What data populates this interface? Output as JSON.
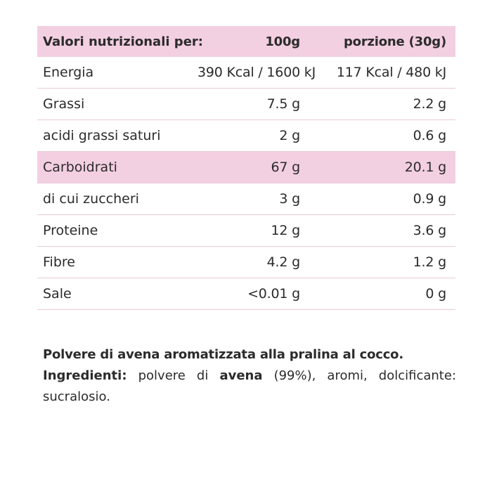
{
  "table": {
    "header": {
      "name": "Valori nutrizionali per:",
      "per_100g": "100g",
      "per_portion": "porzione (30g)"
    },
    "rows": [
      {
        "name": "Energia",
        "per_100g": "390 Kcal / 1600 kJ",
        "per_portion": "117 Kcal / 480 kJ",
        "highlight": false
      },
      {
        "name": "Grassi",
        "per_100g": "7.5 g",
        "per_portion": "2.2 g",
        "highlight": false
      },
      {
        "name": "acidi grassi saturi",
        "per_100g": "2 g",
        "per_portion": "0.6 g",
        "highlight": false
      },
      {
        "name": "Carboidrati",
        "per_100g": "67 g",
        "per_portion": "20.1 g",
        "highlight": true
      },
      {
        "name": "di cui zuccheri",
        "per_100g": "3 g",
        "per_portion": "0.9 g",
        "highlight": false
      },
      {
        "name": "Proteine",
        "per_100g": "12 g",
        "per_portion": "3.6 g",
        "highlight": false
      },
      {
        "name": "Fibre",
        "per_100g": "4.2 g",
        "per_portion": "1.2 g",
        "highlight": false
      },
      {
        "name": "Sale",
        "per_100g": "<0.01 g",
        "per_portion": "0 g",
        "highlight": false
      }
    ]
  },
  "description": {
    "title": "Polvere di avena aromatizzata alla pralina al cocco.",
    "ingredients_label": "Ingredienti:",
    "ingredients_part1": " polvere di ",
    "ingredients_bold": "avena",
    "ingredients_part2": " (99%), aromi, dolcificante: sucralosio."
  },
  "colors": {
    "highlight": "#f3cfe2",
    "divider": "#e8c9d9",
    "text": "#2b2b2b"
  }
}
